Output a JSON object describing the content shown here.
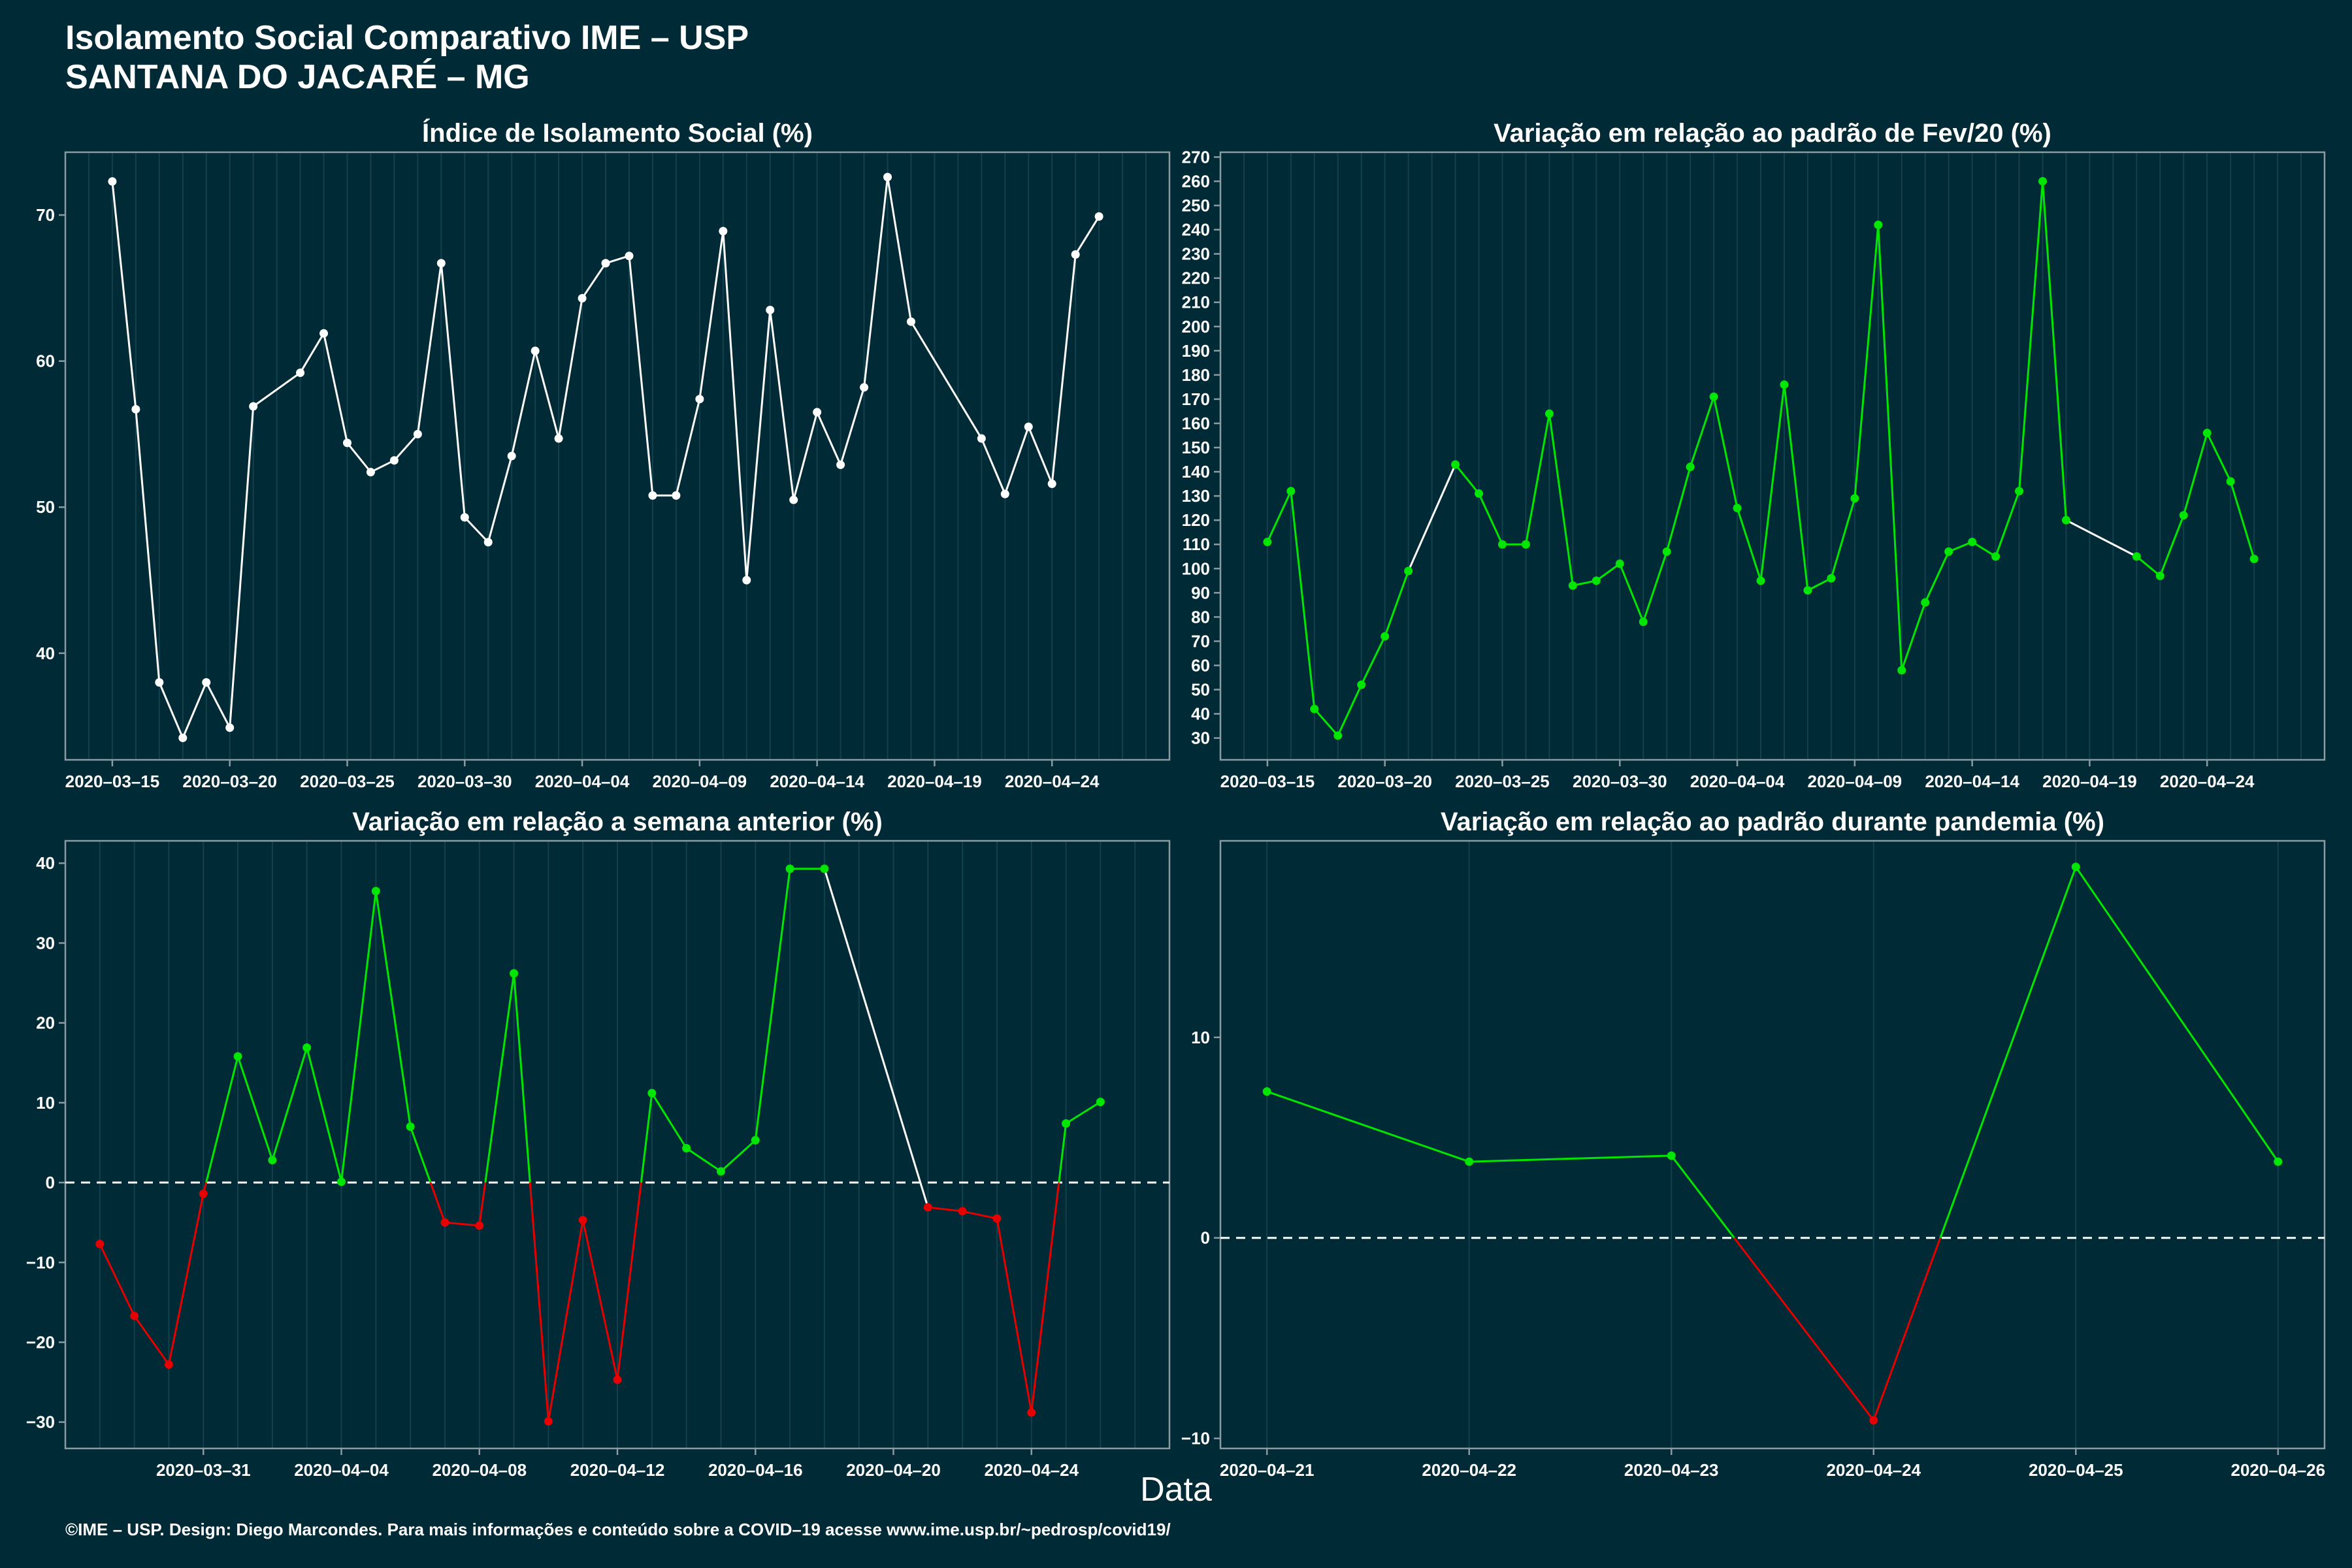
{
  "header": {
    "title_line1": "Isolamento Social Comparativo IME – USP",
    "title_line2": "SANTANA DO JACARÉ – MG"
  },
  "x_axis_label": "Data",
  "footer": "©IME – USP. Design: Diego Marcondes. Para mais informações e conteúdo sobre a COVID–19 acesse www.ime.usp.br/~pedrosp/covid19/",
  "colors": {
    "background": "#002b36",
    "white": "#ffffff",
    "green": "#00e600",
    "red": "#e60000",
    "grid": "#12414d",
    "border": "#8a9ba1"
  },
  "chart_data": [
    {
      "type": "line",
      "title": "Índice de Isolamento Social (%)",
      "ylim": [
        32.7,
        74.3
      ],
      "yticks": [
        40,
        50,
        60,
        70
      ],
      "xlim": [
        "2020-03-13",
        "2020-04-29"
      ],
      "xticks": [
        "2020-03-15",
        "2020-03-20",
        "2020-03-25",
        "2020-03-30",
        "2020-04-04",
        "2020-04-09",
        "2020-04-14",
        "2020-04-19",
        "2020-04-24"
      ],
      "color_mode": "white",
      "series": [
        {
          "x": [
            "2020-03-15",
            "2020-03-16",
            "2020-03-17",
            "2020-03-18",
            "2020-03-19",
            "2020-03-20",
            "2020-03-21",
            "2020-03-23",
            "2020-03-24",
            "2020-03-25",
            "2020-03-26",
            "2020-03-27",
            "2020-03-28",
            "2020-03-29",
            "2020-03-30",
            "2020-03-31",
            "2020-04-01",
            "2020-04-02",
            "2020-04-03",
            "2020-04-04",
            "2020-04-05",
            "2020-04-06",
            "2020-04-07",
            "2020-04-08",
            "2020-04-09",
            "2020-04-10",
            "2020-04-11",
            "2020-04-12",
            "2020-04-13",
            "2020-04-14",
            "2020-04-15",
            "2020-04-16",
            "2020-04-17",
            "2020-04-18",
            "2020-04-21",
            "2020-04-22",
            "2020-04-23",
            "2020-04-24",
            "2020-04-25",
            "2020-04-26"
          ],
          "values": [
            72.3,
            56.7,
            38.0,
            34.2,
            38.0,
            34.9,
            56.9,
            59.2,
            61.9,
            54.4,
            52.4,
            53.2,
            55.0,
            66.7,
            49.3,
            47.6,
            53.5,
            60.7,
            54.7,
            64.3,
            66.7,
            67.2,
            50.8,
            50.8,
            57.4,
            68.9,
            45.0,
            63.5,
            50.5,
            56.5,
            52.9,
            58.2,
            72.6,
            62.7,
            54.7,
            50.9,
            55.5,
            51.6,
            67.3,
            69.9
          ]
        }
      ]
    },
    {
      "type": "line",
      "title": "Variação em relação ao padrão de Fev/20 (%)",
      "ylim": [
        21,
        272
      ],
      "yticks": [
        30,
        40,
        50,
        60,
        70,
        80,
        90,
        100,
        110,
        120,
        130,
        140,
        150,
        160,
        170,
        180,
        190,
        200,
        210,
        220,
        230,
        240,
        250,
        260,
        270
      ],
      "xlim": [
        "2020-03-13",
        "2020-04-29"
      ],
      "xticks": [
        "2020-03-15",
        "2020-03-20",
        "2020-03-25",
        "2020-03-30",
        "2020-04-04",
        "2020-04-09",
        "2020-04-14",
        "2020-04-19",
        "2020-04-24"
      ],
      "color_mode": "green_gap_white",
      "series": [
        {
          "x": [
            "2020-03-15",
            "2020-03-16",
            "2020-03-17",
            "2020-03-18",
            "2020-03-19",
            "2020-03-20",
            "2020-03-21",
            "2020-03-23",
            "2020-03-24",
            "2020-03-25",
            "2020-03-26",
            "2020-03-27",
            "2020-03-28",
            "2020-03-29",
            "2020-03-30",
            "2020-03-31",
            "2020-04-01",
            "2020-04-02",
            "2020-04-03",
            "2020-04-04",
            "2020-04-05",
            "2020-04-06",
            "2020-04-07",
            "2020-04-08",
            "2020-04-09",
            "2020-04-10",
            "2020-04-11",
            "2020-04-12",
            "2020-04-13",
            "2020-04-14",
            "2020-04-15",
            "2020-04-16",
            "2020-04-17",
            "2020-04-18",
            "2020-04-21",
            "2020-04-22",
            "2020-04-23",
            "2020-04-24",
            "2020-04-25",
            "2020-04-26"
          ],
          "values": [
            111,
            132,
            42,
            31,
            52,
            72,
            99,
            143,
            131,
            110,
            110,
            164,
            93,
            95,
            102,
            78,
            107,
            142,
            171,
            125,
            95,
            176,
            91,
            96,
            129,
            242,
            58,
            86,
            107,
            111,
            105,
            132,
            260,
            120,
            105,
            97,
            122,
            156,
            136,
            104
          ]
        }
      ]
    },
    {
      "type": "line",
      "title": "Variação em relação a semana anterior (%)",
      "ylim": [
        -33.3,
        42.8
      ],
      "yticks": [
        -30,
        -20,
        -10,
        0,
        10,
        20,
        30,
        40
      ],
      "xlim": [
        "2020-03-27",
        "2020-04-28"
      ],
      "xticks": [
        "2020-03-31",
        "2020-04-04",
        "2020-04-08",
        "2020-04-12",
        "2020-04-16",
        "2020-04-20",
        "2020-04-24"
      ],
      "color_mode": "sign_gap_white",
      "reference_line": 0,
      "series": [
        {
          "x": [
            "2020-03-28",
            "2020-03-29",
            "2020-03-30",
            "2020-03-31",
            "2020-04-01",
            "2020-04-02",
            "2020-04-03",
            "2020-04-04",
            "2020-04-05",
            "2020-04-06",
            "2020-04-07",
            "2020-04-08",
            "2020-04-09",
            "2020-04-10",
            "2020-04-11",
            "2020-04-12",
            "2020-04-13",
            "2020-04-14",
            "2020-04-15",
            "2020-04-16",
            "2020-04-17",
            "2020-04-18",
            "2020-04-21",
            "2020-04-22",
            "2020-04-23",
            "2020-04-24",
            "2020-04-25",
            "2020-04-26"
          ],
          "values": [
            -7.7,
            -16.7,
            -22.8,
            -1.4,
            15.8,
            2.8,
            16.9,
            0.1,
            36.5,
            7.0,
            -5.0,
            -5.4,
            26.2,
            -29.9,
            -4.7,
            -24.7,
            11.2,
            4.3,
            1.4,
            5.3,
            39.3,
            39.3,
            -3.1,
            -3.6,
            -4.5,
            -28.8,
            7.4,
            10.1
          ]
        }
      ]
    },
    {
      "type": "line",
      "title": "Variação em relação ao padrão durante pandemia (%)",
      "ylim": [
        -10.5,
        19.8
      ],
      "yticks": [
        -10,
        0,
        10
      ],
      "xlim": [
        "2020-04-20.77",
        "2020-04-26.23"
      ],
      "xticks": [
        "2020-04-21",
        "2020-04-22",
        "2020-04-23",
        "2020-04-24",
        "2020-04-25",
        "2020-04-26"
      ],
      "color_mode": "sign",
      "reference_line": 0,
      "series": [
        {
          "x": [
            "2020-04-21",
            "2020-04-22",
            "2020-04-23",
            "2020-04-24",
            "2020-04-25",
            "2020-04-26"
          ],
          "values": [
            7.3,
            3.8,
            4.1,
            -9.1,
            18.5,
            3.8
          ]
        }
      ]
    }
  ]
}
